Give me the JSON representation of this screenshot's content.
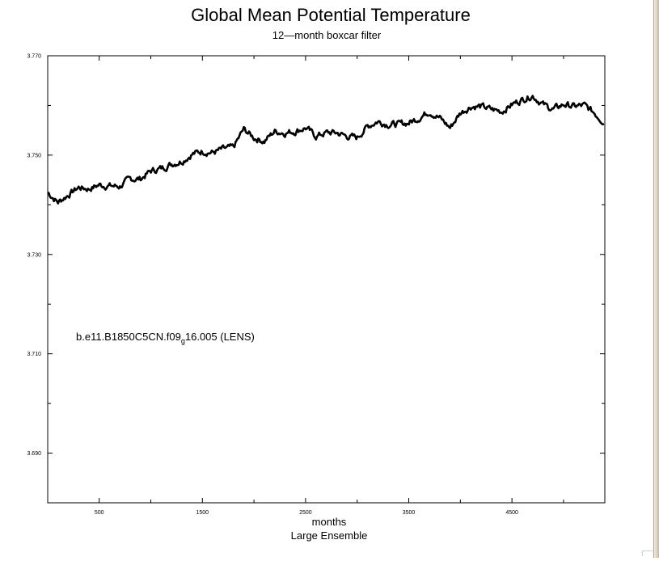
{
  "chart_data": {
    "type": "line",
    "title": "Global Mean Potential Temperature",
    "subtitle": "12—month boxcar filter",
    "xlabel": "months",
    "xlabel2": "Large Ensemble",
    "ylabel": "",
    "annotation": {
      "text": "b.e11.B1850C5CN.f09",
      "subscript": "g",
      "tail": "16.005 (LENS)"
    },
    "xlim": [
      1,
      5400
    ],
    "ylim": [
      3.68,
      3.77
    ],
    "x_ticks": [
      500,
      1500,
      2500,
      3500,
      4500
    ],
    "x_ticklabels": [
      "500",
      "1500",
      "2500",
      "3500",
      "4500"
    ],
    "y_ticks": [
      3.69,
      3.71,
      3.73,
      3.75,
      3.77
    ],
    "y_ticklabels": [
      "3.690",
      "3.710",
      "3.730",
      "3.750",
      "3.770"
    ],
    "series": [
      {
        "x": [
          1,
          100,
          200,
          300,
          400,
          500,
          600,
          700,
          800,
          900,
          1000,
          1100,
          1200,
          1300,
          1400,
          1500,
          1600,
          1700,
          1800,
          1900,
          2000,
          2100,
          2200,
          2300,
          2400,
          2500,
          2600,
          2700,
          2800,
          2900,
          3000,
          3100,
          3200,
          3300,
          3400,
          3500,
          3600,
          3700,
          3800,
          3900,
          4000,
          4100,
          4200,
          4300,
          4400,
          4500,
          4600,
          4700,
          4800,
          4900,
          5000,
          5100,
          5200,
          5300,
          5400
        ],
        "values": [
          3.7425,
          3.7405,
          3.742,
          3.7435,
          3.7432,
          3.744,
          3.7438,
          3.7437,
          3.7452,
          3.7452,
          3.7468,
          3.7473,
          3.7482,
          3.7488,
          3.7502,
          3.7508,
          3.7505,
          3.7512,
          3.7515,
          3.7552,
          3.7535,
          3.7528,
          3.7548,
          3.7545,
          3.7548,
          3.7555,
          3.7538,
          3.7545,
          3.7545,
          3.7538,
          3.7535,
          3.7558,
          3.7568,
          3.7562,
          3.7562,
          3.7565,
          3.7575,
          3.7588,
          3.7575,
          3.7555,
          3.7585,
          3.7598,
          3.7598,
          3.7592,
          3.7588,
          3.7602,
          3.7612,
          3.762,
          3.7602,
          3.7592,
          3.7602,
          3.7598,
          3.76,
          3.7585,
          3.7565
        ]
      }
    ]
  }
}
